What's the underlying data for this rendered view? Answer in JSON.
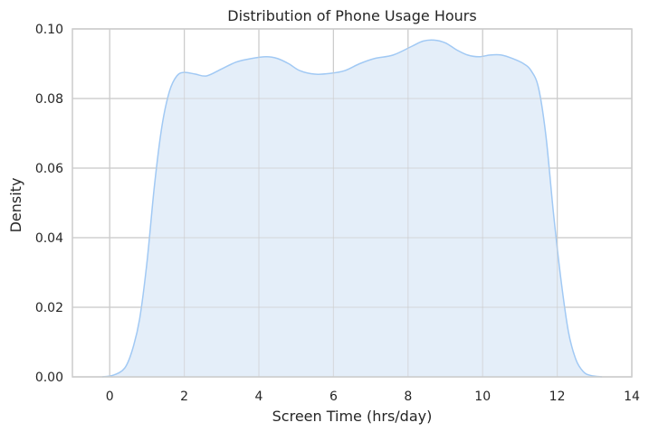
{
  "chart_data": {
    "type": "area",
    "title": "Distribution of Phone Usage Hours",
    "xlabel": "Screen Time (hrs/day)",
    "ylabel": "Density",
    "xlim": [
      -1,
      14
    ],
    "ylim": [
      0,
      0.1
    ],
    "xticks": [
      0,
      2,
      4,
      6,
      8,
      10,
      12,
      14
    ],
    "yticks": [
      0.0,
      0.02,
      0.04,
      0.06,
      0.08,
      0.1
    ],
    "xtick_labels": [
      "0",
      "2",
      "4",
      "6",
      "8",
      "10",
      "12",
      "14"
    ],
    "ytick_labels": [
      "0.00",
      "0.02",
      "0.04",
      "0.06",
      "0.08",
      "0.10"
    ],
    "grid": true,
    "series": [
      {
        "color": "#a1c9f4",
        "fill": "#e4eef9",
        "x": [
          -0.2,
          0.1,
          0.4,
          0.6,
          0.8,
          1.0,
          1.2,
          1.4,
          1.6,
          1.8,
          2.0,
          2.3,
          2.6,
          3.0,
          3.4,
          3.8,
          4.2,
          4.5,
          4.8,
          5.1,
          5.5,
          5.9,
          6.3,
          6.7,
          7.1,
          7.6,
          8.1,
          8.4,
          8.7,
          9.0,
          9.3,
          9.6,
          9.9,
          10.2,
          10.5,
          10.8,
          11.1,
          11.3,
          11.5,
          11.7,
          11.9,
          12.1,
          12.3,
          12.5,
          12.7,
          12.9,
          13.2
        ],
        "y": [
          0.0,
          0.0005,
          0.0025,
          0.0075,
          0.0165,
          0.033,
          0.055,
          0.072,
          0.082,
          0.0865,
          0.0875,
          0.087,
          0.0865,
          0.0885,
          0.0905,
          0.0915,
          0.092,
          0.0915,
          0.09,
          0.088,
          0.087,
          0.0872,
          0.088,
          0.09,
          0.0915,
          0.0925,
          0.095,
          0.0965,
          0.0968,
          0.096,
          0.094,
          0.0925,
          0.092,
          0.0925,
          0.0925,
          0.0915,
          0.09,
          0.088,
          0.083,
          0.069,
          0.047,
          0.028,
          0.013,
          0.005,
          0.0015,
          0.0004,
          0.0
        ]
      }
    ]
  }
}
